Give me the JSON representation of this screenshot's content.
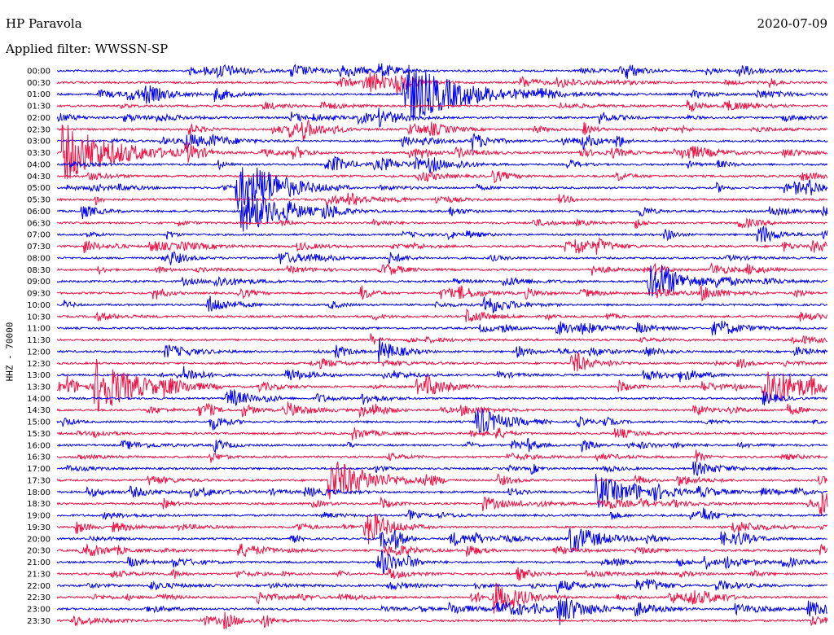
{
  "header": {
    "station": "HP Paravola",
    "date": "2020-07-09",
    "filter": "Applied filter: WWSSN-SP"
  },
  "channel_label": "HHZ - 70000",
  "colors": {
    "odd_trace": "#0000ee",
    "even_trace": "#ee1144"
  },
  "chart_data": {
    "type": "line",
    "title": "HP Paravola",
    "subtitle": "Applied filter: WWSSN-SP",
    "ylabel": "HHZ - 70000",
    "xlabel": "",
    "grid": false,
    "row_labels": [
      "00:00",
      "00:30",
      "01:00",
      "01:30",
      "02:00",
      "02:30",
      "03:00",
      "03:30",
      "04:00",
      "04:30",
      "05:00",
      "05:30",
      "06:00",
      "06:30",
      "07:00",
      "07:30",
      "08:00",
      "08:30",
      "09:00",
      "09:30",
      "10:00",
      "10:30",
      "11:00",
      "11:30",
      "12:00",
      "12:30",
      "13:00",
      "13:30",
      "14:00",
      "14:30",
      "15:00",
      "15:30",
      "16:00",
      "16:30",
      "17:00",
      "17:30",
      "18:00",
      "18:30",
      "19:00",
      "19:30",
      "20:00",
      "20:30",
      "21:00",
      "21:30",
      "22:00",
      "22:30",
      "23:00",
      "23:30"
    ],
    "row_colors": [
      "blue",
      "red"
    ],
    "x_range_min_per_row": [
      0,
      30
    ],
    "events": [
      {
        "row": "01:00",
        "min": 13.5,
        "amp": 1.0
      },
      {
        "row": "03:30",
        "min": 0.2,
        "amp": 0.9
      },
      {
        "row": "05:00",
        "min": 7.0,
        "amp": 0.6
      },
      {
        "row": "06:00",
        "min": 7.2,
        "amp": 0.5
      },
      {
        "row": "09:00",
        "min": 23.0,
        "amp": 0.4
      },
      {
        "row": "13:30",
        "min": 1.5,
        "amp": 0.7
      },
      {
        "row": "13:30",
        "min": 27.5,
        "amp": 0.6
      },
      {
        "row": "15:00",
        "min": 16.3,
        "amp": 0.3
      },
      {
        "row": "17:30",
        "min": 10.6,
        "amp": 0.6
      },
      {
        "row": "18:00",
        "min": 21.0,
        "amp": 0.4
      },
      {
        "row": "20:00",
        "min": 20.0,
        "amp": 0.3
      },
      {
        "row": "22:30",
        "min": 17.0,
        "amp": 0.3
      },
      {
        "row": "23:00",
        "min": 19.5,
        "amp": 0.3
      }
    ]
  }
}
